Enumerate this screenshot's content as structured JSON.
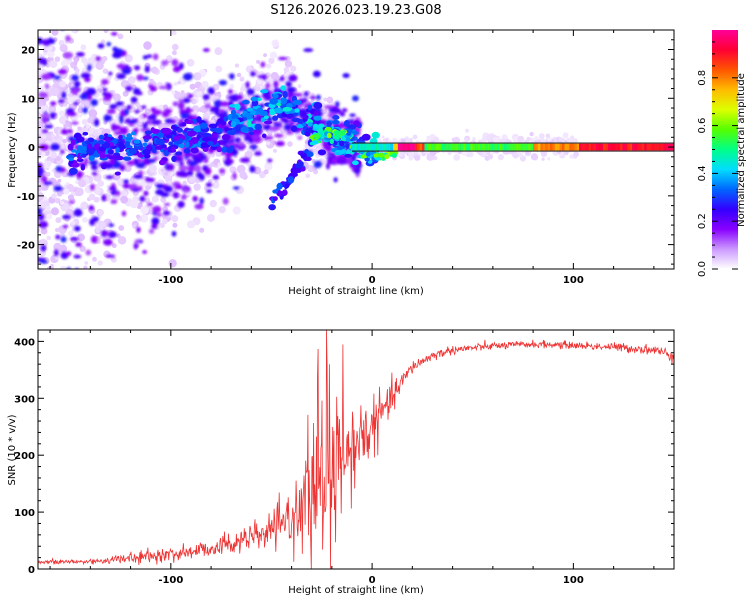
{
  "figure": {
    "title": "S126.2026.023.19.23.G08"
  },
  "chart_data": [
    {
      "type": "heatmap",
      "name": "spectrogram",
      "title": "S126.2026.023.19.23.G08",
      "xlabel": "Height of straight line (km)",
      "ylabel": "Frequency (Hz)",
      "xlim": [
        -166,
        150
      ],
      "ylim": [
        -25,
        24
      ],
      "xticks": [
        -100,
        0,
        100
      ],
      "xtick_labels": [
        "-100",
        "0",
        "100"
      ],
      "yticks": [
        -20,
        -10,
        0,
        10,
        20
      ],
      "ytick_labels": [
        "-20",
        "-10",
        "0",
        "10",
        "20"
      ],
      "colorbar": {
        "label": "Normalized spectral amplitude",
        "range": [
          0,
          1
        ],
        "ticks": [
          0.0,
          0.2,
          0.4,
          0.6,
          0.8
        ],
        "tick_labels": [
          "0.0",
          "0.2",
          "0.4",
          "0.6",
          "0.8"
        ],
        "colors": [
          "#ffffff",
          "#cc99ff",
          "#8800ff",
          "#3300ff",
          "#0066ff",
          "#00ddff",
          "#00ff88",
          "#55ff00",
          "#ddff00",
          "#ffbb00",
          "#ff5500",
          "#ff0033",
          "#ff0099"
        ]
      },
      "features": [
        {
          "name": "doppler-line",
          "x_range": [
            -30,
            150
          ],
          "y_center": 0,
          "peak_amplitude": 0.95
        },
        {
          "name": "noise-scatter",
          "x_range": [
            -166,
            -30
          ],
          "y_spread": 22,
          "amplitude_range": [
            0.0,
            0.35
          ]
        },
        {
          "name": "rising-track",
          "x_points": [
            -150,
            -110,
            -80,
            -60,
            -45,
            -30,
            -10,
            0
          ],
          "y_points": [
            -1,
            1,
            2,
            6,
            9,
            4,
            1,
            -1
          ]
        },
        {
          "name": "tail-streak",
          "x_points": [
            -50,
            -42,
            -35,
            -30
          ],
          "y_points": [
            -12,
            -7,
            -3,
            0
          ]
        }
      ]
    },
    {
      "type": "line",
      "name": "snr",
      "xlabel": "Height of straight line (km)",
      "ylabel": "SNR (10 * v/v)",
      "xlim": [
        -166,
        150
      ],
      "ylim": [
        0,
        420
      ],
      "xticks": [
        -100,
        0,
        100
      ],
      "xtick_labels": [
        "-100",
        "0",
        "100"
      ],
      "yticks": [
        0,
        100,
        200,
        300,
        400
      ],
      "ytick_labels": [
        "0",
        "100",
        "200",
        "300",
        "400"
      ],
      "color": "#ee3333",
      "envelope": {
        "x": [
          -166,
          -140,
          -110,
          -90,
          -70,
          -55,
          -45,
          -35,
          -28,
          -20,
          -15,
          -10,
          -5,
          0,
          5,
          10,
          15,
          20,
          30,
          40,
          60,
          80,
          100,
          120,
          140,
          150
        ],
        "y": [
          12,
          13,
          22,
          30,
          45,
          60,
          75,
          110,
          140,
          160,
          185,
          205,
          230,
          250,
          275,
          300,
          330,
          355,
          375,
          385,
          392,
          395,
          393,
          390,
          385,
          375
        ],
        "noise_amplitude": [
          4,
          5,
          10,
          14,
          18,
          22,
          30,
          70,
          120,
          150,
          110,
          80,
          60,
          45,
          35,
          25,
          15,
          10,
          8,
          7,
          6,
          6,
          6,
          7,
          8,
          10
        ]
      }
    }
  ]
}
